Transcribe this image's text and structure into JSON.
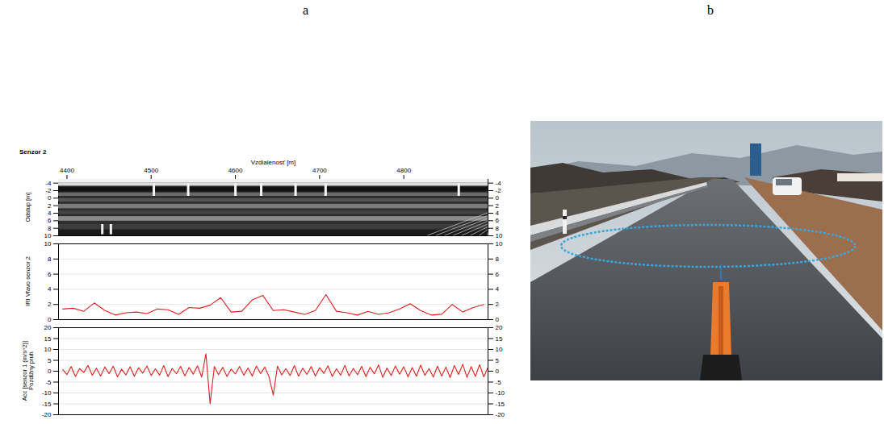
{
  "panel_labels": [
    "a",
    "b"
  ],
  "chart_data": [
    {
      "type": "image",
      "title": "Senzor 2",
      "x_label": "Vzdialenosť [m]",
      "y_label": "Odstup [m]",
      "xlim": [
        4390,
        4900
      ],
      "xticks": [
        4400,
        4500,
        4600,
        4700,
        4800
      ],
      "ylim": [
        10,
        -5
      ],
      "yticks": [
        -4,
        -2,
        0,
        2,
        4,
        6,
        8,
        10
      ],
      "grid": false
    },
    {
      "type": "line",
      "y_label": "IRI Vľavo senzor 2",
      "color": "#e0201b",
      "grid": true,
      "tick_labels": "y",
      "xlim": [
        4390,
        4900
      ],
      "xticks": [
        4400,
        4500,
        4600,
        4700,
        4800
      ],
      "ylim": [
        0,
        10
      ],
      "yticks": [
        0,
        2,
        4,
        6,
        8,
        10
      ],
      "x": [
        4395,
        4407.5,
        4420,
        4432.5,
        4445,
        4457.5,
        4470,
        4482.5,
        4495,
        4507.5,
        4520,
        4532.5,
        4545,
        4557.5,
        4570,
        4582.5,
        4595,
        4607.5,
        4620,
        4632.5,
        4645,
        4657.5,
        4670,
        4682.5,
        4695,
        4707.5,
        4720,
        4732.5,
        4745,
        4757.5,
        4770,
        4782.5,
        4795,
        4807.5,
        4820,
        4832.5,
        4845,
        4857.5,
        4870,
        4882.5,
        4895
      ],
      "values": [
        1.4,
        1.5,
        1.1,
        2.2,
        1.2,
        0.6,
        0.9,
        1.0,
        0.8,
        1.4,
        1.3,
        0.7,
        1.6,
        1.5,
        1.9,
        2.9,
        1.0,
        1.1,
        2.6,
        3.2,
        1.2,
        1.3,
        1.0,
        0.7,
        1.2,
        3.3,
        1.1,
        0.9,
        0.6,
        1.1,
        0.7,
        0.9,
        1.4,
        2.1,
        1.2,
        0.6,
        0.7,
        2.0,
        1.0,
        1.6,
        2.0
      ]
    },
    {
      "type": "line",
      "y_label": "Acc [senzor 1 (m/s^2)] Pozdĺžny pruh",
      "color": "#e0201b",
      "grid": true,
      "tick_labels": "y",
      "xlim": [
        4390,
        4900
      ],
      "xticks": [
        4400,
        4500,
        4600,
        4700,
        4800
      ],
      "ylim": [
        -20,
        20
      ],
      "yticks": [
        -20,
        -15,
        -10,
        -5,
        0,
        5,
        10,
        15,
        20
      ],
      "x": [
        4395,
        4400,
        4405,
        4410,
        4415,
        4420,
        4425,
        4430,
        4435,
        4440,
        4445,
        4450,
        4455,
        4460,
        4465,
        4470,
        4475,
        4480,
        4485,
        4490,
        4495,
        4500,
        4505,
        4510,
        4515,
        4520,
        4525,
        4530,
        4535,
        4540,
        4545,
        4550,
        4555,
        4560,
        4565,
        4570,
        4575,
        4580,
        4585,
        4590,
        4595,
        4600,
        4605,
        4610,
        4615,
        4620,
        4625,
        4630,
        4635,
        4640,
        4645,
        4650,
        4655,
        4660,
        4665,
        4670,
        4675,
        4680,
        4685,
        4690,
        4695,
        4700,
        4705,
        4710,
        4715,
        4720,
        4725,
        4730,
        4735,
        4740,
        4745,
        4750,
        4755,
        4760,
        4765,
        4770,
        4775,
        4780,
        4785,
        4790,
        4795,
        4800,
        4805,
        4810,
        4815,
        4820,
        4825,
        4830,
        4835,
        4840,
        4845,
        4850,
        4855,
        4860,
        4865,
        4870,
        4875,
        4880,
        4885,
        4890,
        4895,
        4900
      ],
      "values": [
        0.8,
        -1.5,
        2.1,
        -2.4,
        1.2,
        -0.6,
        2.7,
        -1.9,
        1.4,
        -2.2,
        1.9,
        -1.1,
        2.3,
        -2.6,
        0.9,
        -1.7,
        2.0,
        -2.3,
        1.6,
        -0.9,
        2.4,
        -2.0,
        1.1,
        -1.8,
        2.6,
        -2.5,
        1.3,
        -1.2,
        2.2,
        -2.1,
        1.7,
        -1.4,
        2.5,
        -2.7,
        8.0,
        -15.0,
        2.1,
        -1.6,
        1.8,
        -2.4,
        1.0,
        -1.3,
        2.2,
        -1.9,
        1.5,
        -2.2,
        2.4,
        -1.1,
        1.9,
        -2.6,
        -11.0,
        2.3,
        -1.7,
        1.2,
        -2.0,
        2.6,
        -2.3,
        1.4,
        -1.5,
        2.1,
        -2.2,
        1.6,
        -1.0,
        2.5,
        -2.4,
        1.1,
        -1.8,
        2.7,
        -2.1,
        1.3,
        -1.6,
        2.2,
        -2.5,
        1.8,
        -1.2,
        2.9,
        -2.8,
        1.5,
        -2.0,
        2.4,
        -1.4,
        2.0,
        -2.6,
        1.7,
        -2.3,
        2.8,
        -1.9,
        1.2,
        -2.7,
        2.3,
        -2.2,
        1.9,
        -2.9,
        2.6,
        -1.5,
        3.2,
        -2.8,
        2.1,
        -2.4,
        3.0,
        -2.6,
        1.8
      ]
    }
  ]
}
